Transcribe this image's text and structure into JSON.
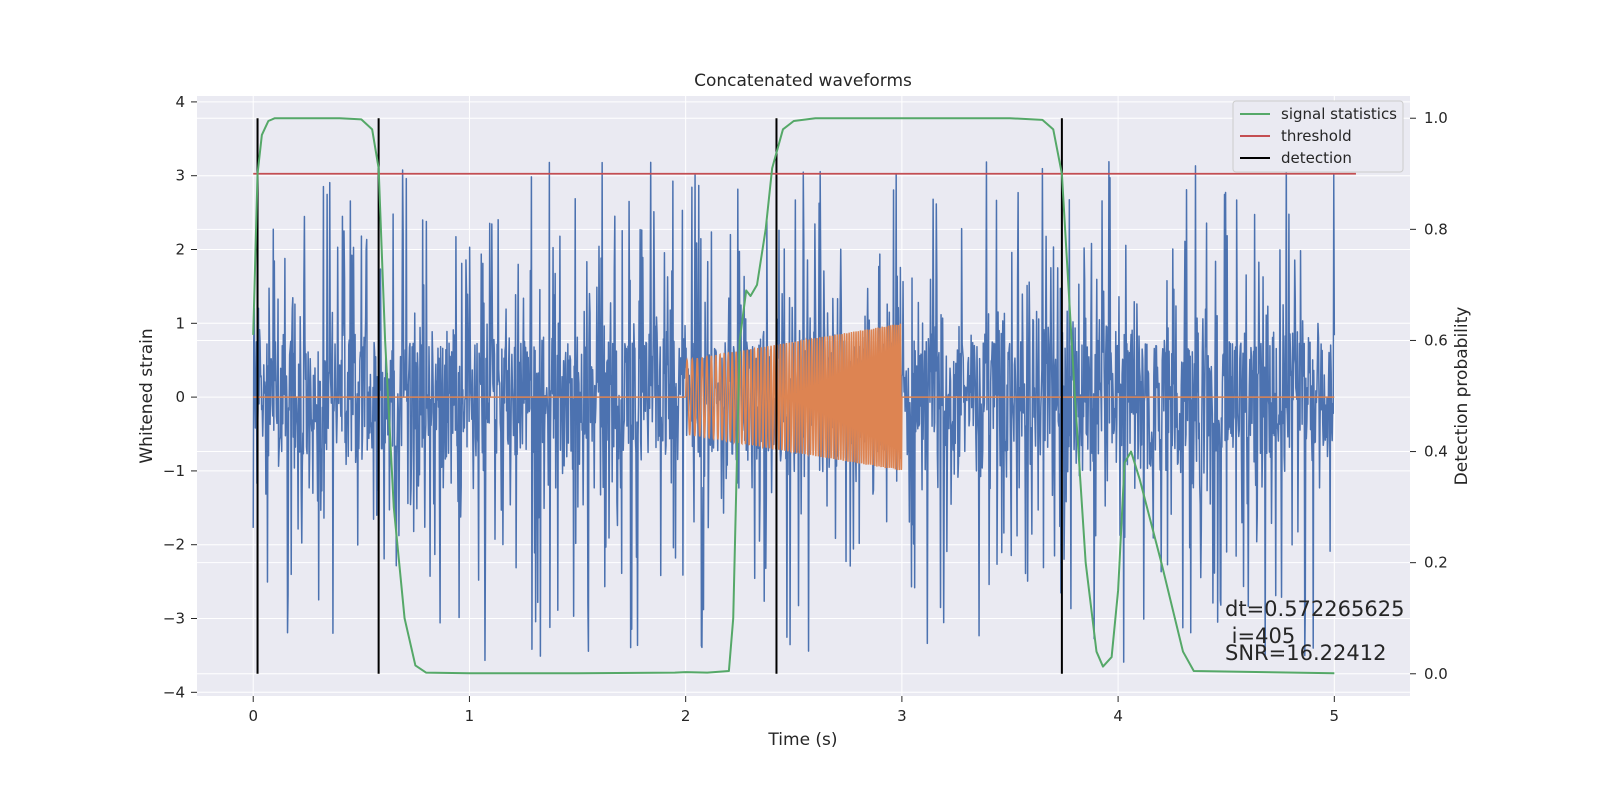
{
  "chart_data": {
    "type": "line",
    "title": "Concatenated waveforms",
    "xlabel": "Time (s)",
    "ylabel": "Whitened strain",
    "ylabel_right": "Detection probability",
    "xlim": [
      -0.26,
      5.35
    ],
    "ylim": [
      -4.05,
      4.08
    ],
    "ylim_right": [
      -0.04,
      1.04
    ],
    "x_ticks": [
      "0",
      "1",
      "2",
      "3",
      "4",
      "5"
    ],
    "y_ticks": [
      "4",
      "3",
      "2",
      "1",
      "0",
      "−1",
      "−2",
      "−3",
      "−4"
    ],
    "y_ticks_right": [
      "1.0",
      "0.8",
      "0.6",
      "0.4",
      "0.2",
      "0.0"
    ],
    "grid": true,
    "legend_position": "top-right",
    "legend": [
      "signal statistics",
      "threshold",
      "detection"
    ],
    "colors": {
      "strain": "#4c72b0",
      "injected_waveform": "#dd8452",
      "signal_statistics": "#55a868",
      "threshold": "#c44e52",
      "detection": "#000000",
      "plot_background": "#eaeaf2",
      "grid": "#ffffff"
    },
    "series": [
      {
        "name": "signal statistics",
        "axis": "right",
        "x": [
          0.0,
          0.02,
          0.04,
          0.07,
          0.1,
          0.2,
          0.4,
          0.5,
          0.55,
          0.58,
          0.61,
          0.65,
          0.7,
          0.75,
          0.8,
          1.0,
          1.5,
          1.95,
          2.0,
          2.1,
          2.2,
          2.22,
          2.25,
          2.28,
          2.3,
          2.33,
          2.37,
          2.4,
          2.45,
          2.5,
          2.6,
          3.0,
          3.5,
          3.65,
          3.7,
          3.74,
          3.8,
          3.85,
          3.9,
          3.93,
          3.97,
          4.0,
          4.03,
          4.06,
          4.1,
          4.2,
          4.3,
          4.35,
          5.0
        ],
        "y": [
          0.61,
          0.9,
          0.97,
          0.995,
          1.0,
          1.0,
          1.0,
          0.998,
          0.98,
          0.91,
          0.6,
          0.3,
          0.1,
          0.015,
          0.002,
          0.001,
          0.001,
          0.002,
          0.003,
          0.002,
          0.005,
          0.1,
          0.6,
          0.69,
          0.68,
          0.7,
          0.8,
          0.91,
          0.98,
          0.995,
          1.0,
          1.0,
          1.0,
          0.997,
          0.98,
          0.9,
          0.5,
          0.2,
          0.04,
          0.013,
          0.03,
          0.15,
          0.38,
          0.4,
          0.35,
          0.2,
          0.04,
          0.005,
          0.001
        ]
      },
      {
        "name": "threshold",
        "axis": "right",
        "x": [
          0.0,
          5.1
        ],
        "y": [
          0.9,
          0.9
        ]
      }
    ],
    "detections_x": [
      0.02,
      0.58,
      2.42,
      3.74
    ],
    "strain_noise": {
      "x_range": [
        0.0,
        5.0
      ],
      "samples": 2048,
      "core_amplitude": 0.72,
      "spike_range": [
        -3.6,
        3.3
      ]
    },
    "injected_waveform": {
      "x_range": [
        2.0,
        3.0
      ],
      "amplitude_start": 0.5,
      "amplitude_end": 1.0,
      "baseline": 0.0
    },
    "annotations": [
      "dt=0.572265625",
      " i=405",
      "SNR=16.22412"
    ]
  }
}
